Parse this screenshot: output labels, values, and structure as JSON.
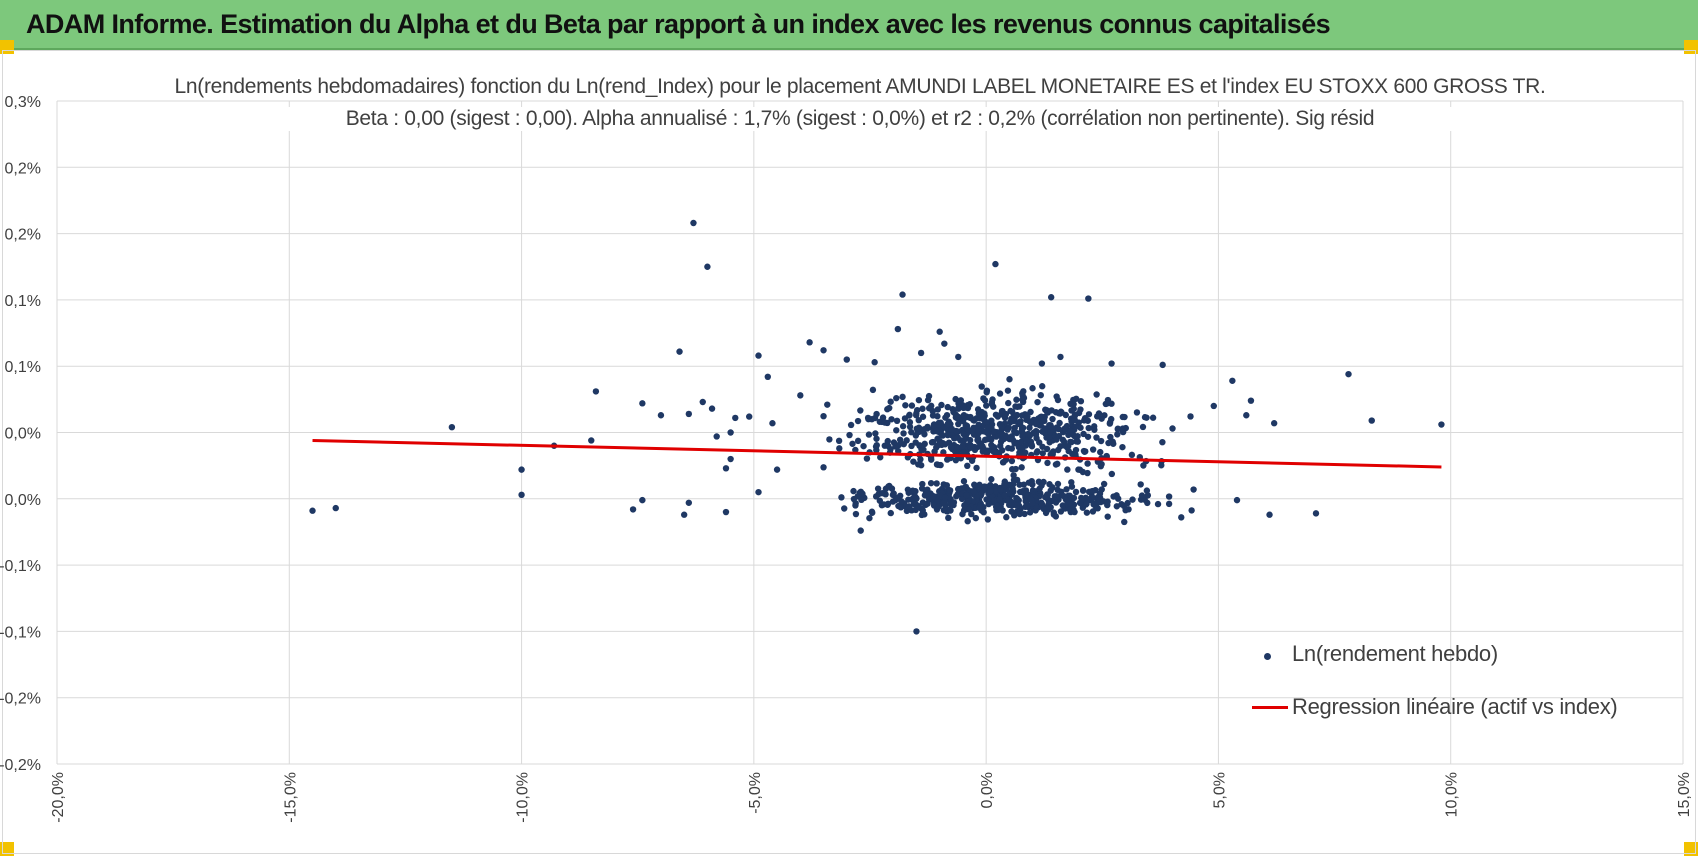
{
  "header": {
    "title": "ADAM Informe. Estimation du Alpha et du Beta par rapport à un index avec les revenus connus capitalisés",
    "background": "#7dc87c",
    "corner_color": "#f2c200"
  },
  "chart_data": {
    "type": "scatter",
    "title": "Ln(rendements hebdomadaires) fonction du Ln(rend_Index) pour le placement AMUNDI LABEL MONETAIRE ES et l'index EU STOXX 600 GROSS TR.",
    "subtitle": "Beta : 0,00 (sigest : 0,00). Alpha annualisé : 1,7% (sigest : 0,0%) et r2 : 0,2% (corrélation non pertinente). Sig résid",
    "xlabel": "",
    "ylabel": "",
    "x_unit": "percent",
    "y_unit": "percent",
    "xlim": [
      -20,
      15
    ],
    "ylim": [
      -0.2,
      0.3
    ],
    "x_ticks": [
      -20,
      -15,
      -10,
      -5,
      0,
      5,
      10,
      15
    ],
    "x_tick_labels": [
      "-20,0%",
      "-15,0%",
      "-10,0%",
      "-5,0%",
      "0,0%",
      "5,0%",
      "10,0%",
      "15,0%"
    ],
    "y_ticks": [
      0.3,
      0.25,
      0.2,
      0.15,
      0.1,
      0.05,
      0.0,
      -0.05,
      -0.1,
      -0.15,
      -0.2
    ],
    "y_tick_labels": [
      "0,3%",
      "0,2%",
      "0,2%",
      "0,1%",
      "0,1%",
      "0,0%",
      "0,0%",
      "-0,1%",
      "-0,1%",
      "-0,2%",
      "-0,2%"
    ],
    "grid": true,
    "legend_position": "bottom-right",
    "colors": {
      "points": "#1f3864",
      "regression": "#e00000",
      "grid": "#d9d9d9"
    },
    "series": [
      {
        "name": "Ln(rendement hebdo)",
        "kind": "scatter",
        "points": [
          [
            -14.5,
            -0.009
          ],
          [
            -14.0,
            -0.007
          ],
          [
            -11.5,
            0.054
          ],
          [
            -10.0,
            0.022
          ],
          [
            -10.0,
            0.003
          ],
          [
            -9.3,
            0.04
          ],
          [
            -8.5,
            0.044
          ],
          [
            -8.4,
            0.081
          ],
          [
            -7.6,
            -0.008
          ],
          [
            -7.4,
            -0.001
          ],
          [
            -7.4,
            0.072
          ],
          [
            -7.0,
            0.063
          ],
          [
            -6.6,
            0.111
          ],
          [
            -6.5,
            -0.012
          ],
          [
            -6.4,
            -0.003
          ],
          [
            -6.4,
            0.064
          ],
          [
            -6.3,
            0.208
          ],
          [
            -6.1,
            0.073
          ],
          [
            -6.0,
            0.175
          ],
          [
            -5.9,
            0.068
          ],
          [
            -5.8,
            0.047
          ],
          [
            -5.6,
            -0.01
          ],
          [
            -5.6,
            0.023
          ],
          [
            -5.5,
            0.03
          ],
          [
            -5.5,
            0.05
          ],
          [
            -5.4,
            0.061
          ],
          [
            -5.1,
            0.062
          ],
          [
            -4.9,
            0.108
          ],
          [
            -4.9,
            0.005
          ],
          [
            -4.7,
            0.092
          ],
          [
            -4.6,
            0.057
          ],
          [
            -4.5,
            0.022
          ],
          [
            -4.0,
            0.078
          ],
          [
            -3.8,
            0.118
          ],
          [
            -3.5,
            0.112
          ],
          [
            -3.0,
            0.105
          ],
          [
            -2.4,
            0.103
          ],
          [
            -1.9,
            0.128
          ],
          [
            -1.8,
            0.154
          ],
          [
            -1.4,
            0.11
          ],
          [
            -1.0,
            0.126
          ],
          [
            -0.9,
            0.117
          ],
          [
            -0.6,
            0.107
          ],
          [
            0.2,
            0.177
          ],
          [
            1.2,
            0.102
          ],
          [
            1.4,
            0.152
          ],
          [
            1.6,
            0.107
          ],
          [
            2.2,
            0.151
          ],
          [
            2.7,
            0.102
          ],
          [
            3.8,
            0.101
          ],
          [
            4.9,
            0.07
          ],
          [
            5.3,
            0.089
          ],
          [
            5.4,
            -0.001
          ],
          [
            5.6,
            0.063
          ],
          [
            5.7,
            0.074
          ],
          [
            6.2,
            0.057
          ],
          [
            6.1,
            -0.012
          ],
          [
            7.1,
            -0.011
          ],
          [
            7.8,
            0.094
          ],
          [
            8.3,
            0.059
          ],
          [
            9.8,
            0.056
          ],
          [
            -1.5,
            -0.1
          ],
          [
            4.2,
            -0.014
          ],
          [
            3.7,
            -0.004
          ],
          [
            -2.7,
            -0.024
          ]
        ]
      },
      {
        "name": "Regression linéaire (actif vs index)",
        "kind": "line",
        "x": [
          -14.5,
          9.8
        ],
        "y": [
          0.044,
          0.024
        ]
      }
    ],
    "dense_cluster": {
      "x_center": 0.3,
      "x_spread": 2.0,
      "x_range": [
        -3.5,
        4.5
      ],
      "y_bands": [
        [
          0.0,
          0.012
        ],
        [
          0.05,
          0.025
        ]
      ],
      "count": 1100
    }
  }
}
